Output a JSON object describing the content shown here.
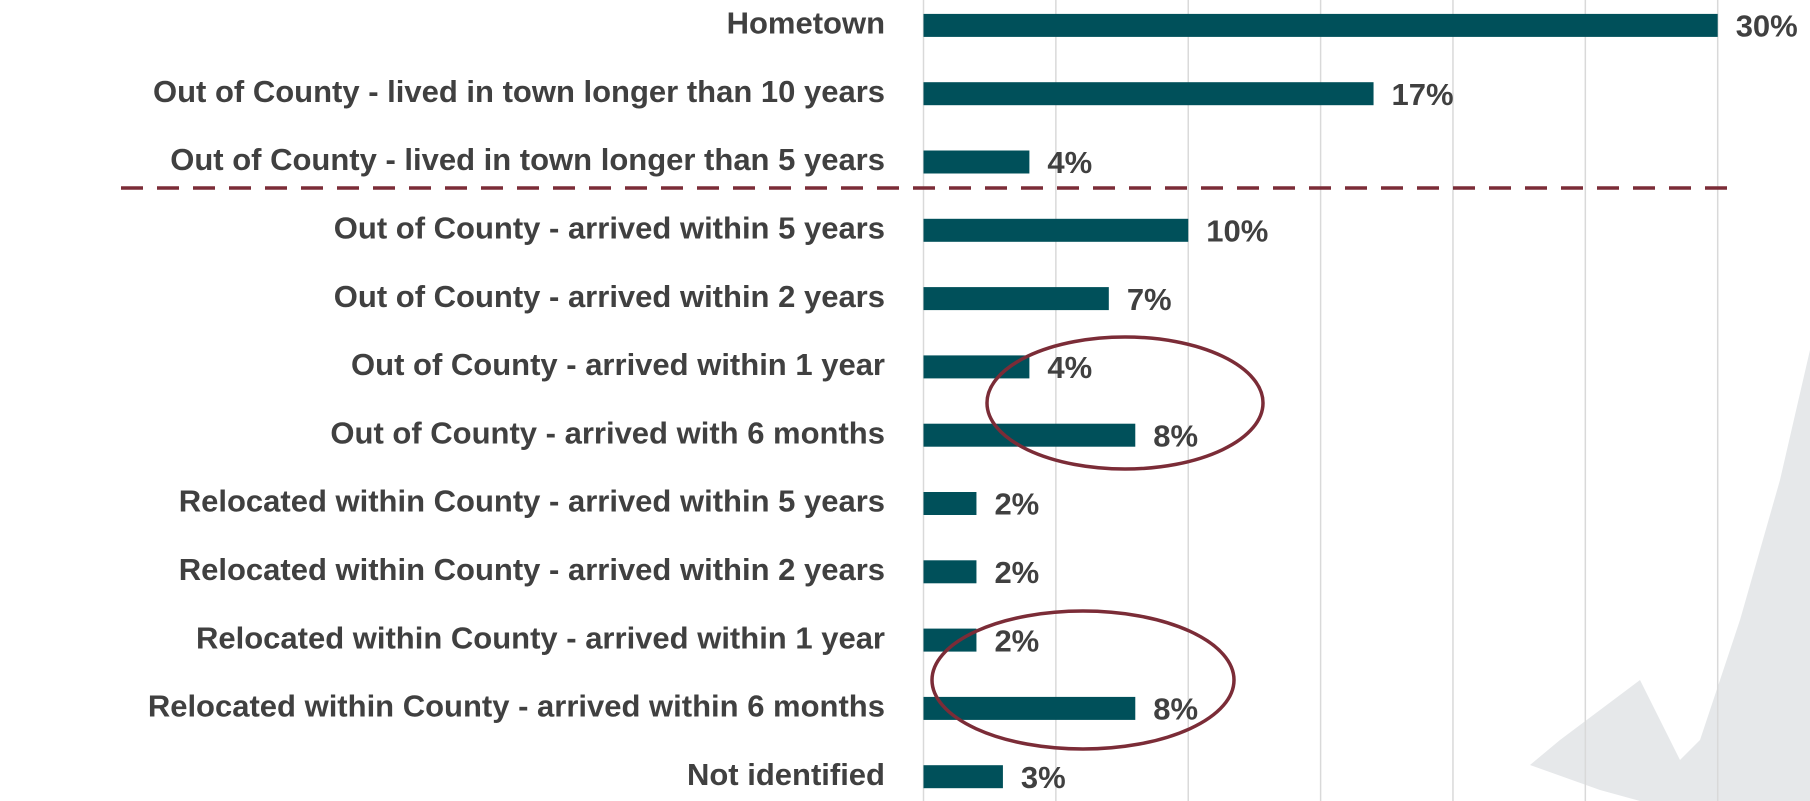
{
  "chart_data": {
    "type": "bar",
    "orientation": "horizontal",
    "categories": [
      "Hometown",
      "Out of County - lived in town longer than 10 years",
      "Out of County - lived in town longer than 5 years",
      "Out of County - arrived within 5 years",
      "Out of County - arrived within 2 years",
      "Out of County - arrived within 1 year",
      "Out of County - arrived with 6 months",
      "Relocated within County - arrived within 5 years",
      "Relocated within County - arrived within 2 years",
      "Relocated within County - arrived within 1 year",
      "Relocated within County - arrived within 6 months",
      "Not identified"
    ],
    "values": [
      30,
      17,
      4,
      10,
      7,
      4,
      8,
      2,
      2,
      2,
      8,
      3
    ],
    "value_labels": [
      "30%",
      "17%",
      "4%",
      "10%",
      "7%",
      "4%",
      "8%",
      "2%",
      "2%",
      "2%",
      "8%",
      "3%"
    ],
    "color": "#00505a",
    "xlim": [
      0,
      30
    ],
    "xticks": [
      0,
      5,
      10,
      15,
      20,
      25,
      30
    ],
    "grid": true
  }
}
